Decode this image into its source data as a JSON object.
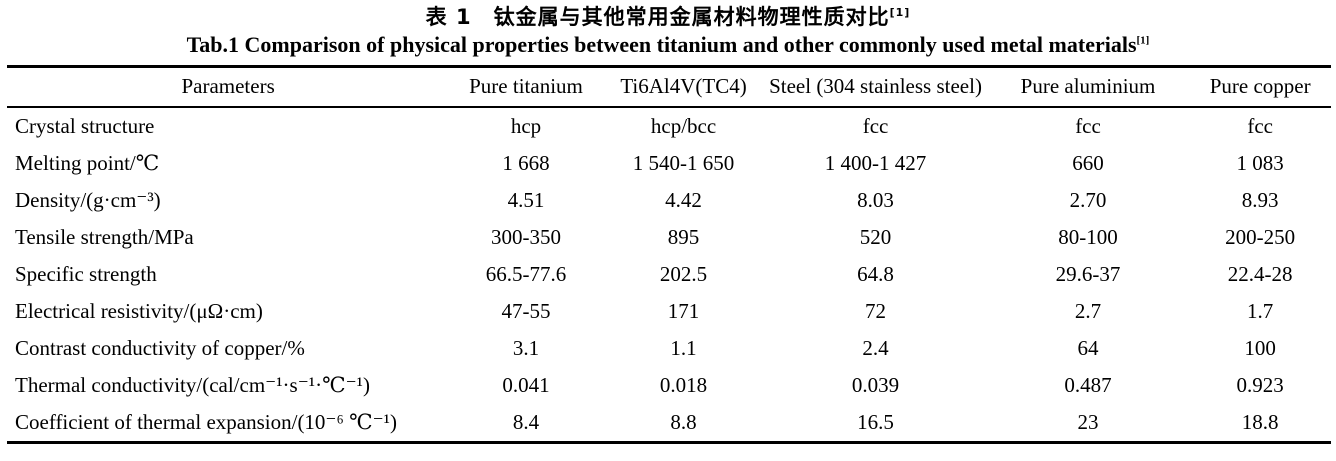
{
  "page": {
    "background": "#ffffff",
    "text_color": "#000000",
    "title_zh": "表 1　钛金属与其他常用金属材料物理性质对比",
    "title_zh_ref": "[1]",
    "title_en": "Tab.1 Comparison of physical properties between titanium and other commonly used metal materials",
    "title_en_ref": "[1]"
  },
  "table": {
    "columns": [
      "Parameters",
      "Pure titanium",
      "Ti6Al4V(TC4)",
      "Steel (304 stainless steel)",
      "Pure aluminium",
      "Pure copper"
    ],
    "rows": [
      {
        "param": "Crystal structure",
        "values": [
          "hcp",
          "hcp/bcc",
          "fcc",
          "fcc",
          "fcc"
        ]
      },
      {
        "param": "Melting point/℃",
        "values": [
          "1 668",
          "1 540-1 650",
          "1 400-1 427",
          "660",
          "1 083"
        ]
      },
      {
        "param": "Density/(g·cm⁻³)",
        "values": [
          "4.51",
          "4.42",
          "8.03",
          "2.70",
          "8.93"
        ]
      },
      {
        "param": "Tensile strength/MPa",
        "values": [
          "300-350",
          "895",
          "520",
          "80-100",
          "200-250"
        ]
      },
      {
        "param": "Specific strength",
        "values": [
          "66.5-77.6",
          "202.5",
          "64.8",
          "29.6-37",
          "22.4-28"
        ]
      },
      {
        "param": "Electrical resistivity/(μΩ·cm)",
        "values": [
          "47-55",
          "171",
          "72",
          "2.7",
          "1.7"
        ]
      },
      {
        "param": "Contrast conductivity of copper/%",
        "values": [
          "3.1",
          "1.1",
          "2.4",
          "64",
          "100"
        ]
      },
      {
        "param": "Thermal conductivity/(cal/cm⁻¹·s⁻¹·℃⁻¹)",
        "values": [
          "0.041",
          "0.018",
          "0.039",
          "0.487",
          "0.923"
        ]
      },
      {
        "param": "Coefficient of thermal expansion/(10⁻⁶ ℃⁻¹)",
        "values": [
          "8.4",
          "8.8",
          "16.5",
          "23",
          "18.8"
        ]
      }
    ]
  }
}
